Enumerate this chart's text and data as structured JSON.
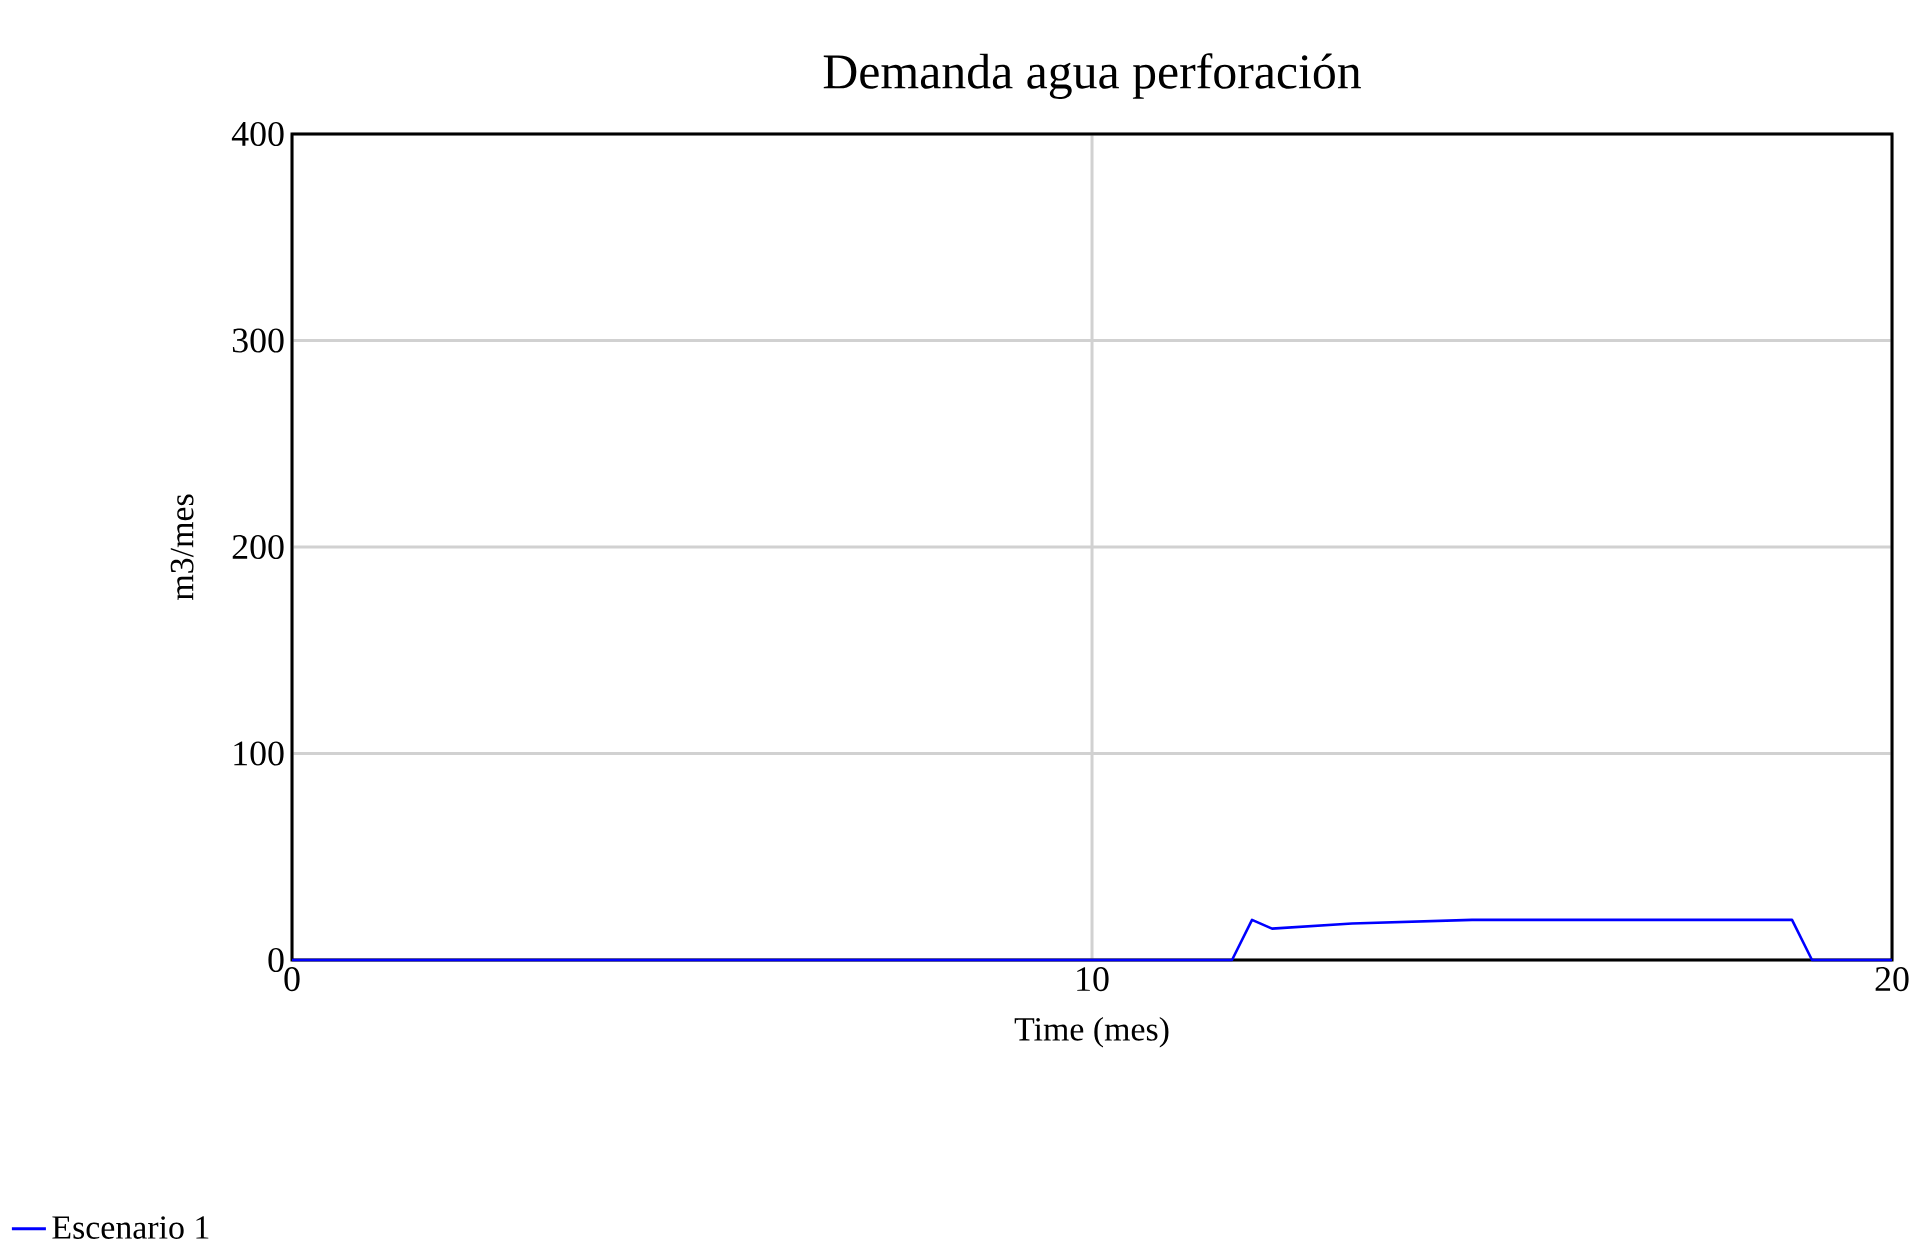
{
  "chart_data": {
    "type": "line",
    "title": "Demanda agua perforación",
    "xlabel": "Time (mes)",
    "ylabel": "m3/mes",
    "xlim": [
      0,
      20
    ],
    "ylim": [
      0,
      400
    ],
    "xticks": [
      0,
      10,
      20
    ],
    "yticks": [
      0,
      100,
      200,
      300,
      400
    ],
    "grid": true,
    "legend": "bottom left",
    "series": [
      {
        "name": "Escenario 1",
        "color": "#0000ff",
        "x": [
          0,
          11.75,
          12,
          12.25,
          13.25,
          14.75,
          18.75,
          19,
          20
        ],
        "values": [
          0,
          0,
          19.4,
          15.2,
          17.7,
          19.4,
          19.4,
          0,
          0
        ]
      }
    ]
  }
}
